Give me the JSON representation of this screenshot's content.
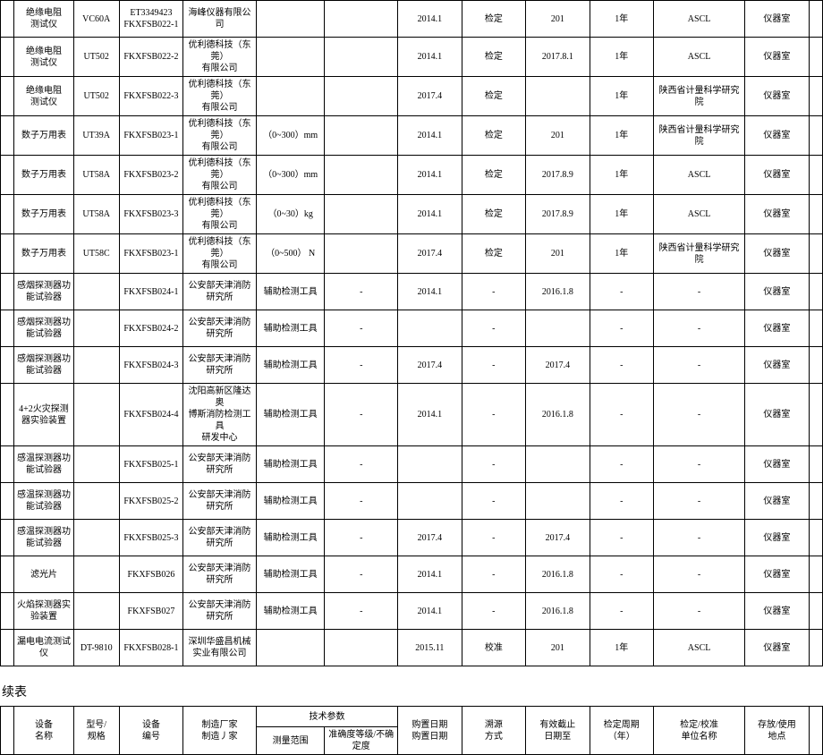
{
  "continuation_label": "续表",
  "header": {
    "col0": "",
    "col1_l1": "设备",
    "col1_l2": "名称",
    "col2_l1": "型号/",
    "col2_l2": "规格",
    "col3_l1": "设备",
    "col3_l2": "编号",
    "col4_l1": "制造厂家",
    "col4_l2": "制造丿家",
    "tech_params": "技术参数",
    "tech_sub1": "测量范围",
    "tech_sub2": "准确度等级/不确定度",
    "col7_l1": "购置日期",
    "col7_l2": "购置日期",
    "col8_l1": "溯源",
    "col8_l2": "方式",
    "col9_l1": "有效截止",
    "col9_l2": "日期至",
    "col10_l1": "检定周期",
    "col10_l2": "（年）",
    "col11_l1": "检定/校准",
    "col11_l2": "单位名称",
    "col12_l1": "存放/使用",
    "col12_l2": "地点",
    "col13": ""
  },
  "rows": [
    {
      "c0": "",
      "c1": "绝缘电阻<br>测试仪",
      "c2": "VC60A",
      "c3": "ET3349423<br>FKXFSB022-1",
      "c4": "海峰仪器有限公司",
      "c5": "",
      "c6": "",
      "c7": "2014.1",
      "c8": "检定",
      "c9": "201",
      "c10": "1年",
      "c11": "ASCL",
      "c12": "仪器室",
      "c13": ""
    },
    {
      "c0": "",
      "c1": "绝缘电阻<br>测试仪",
      "c2": "UT502",
      "c3": "FKXFSB022-2",
      "c4": "优利德科技（东莞）<br>有限公司",
      "c5": "",
      "c6": "",
      "c7": "2014.1",
      "c8": "检定",
      "c9": "2017.8.1",
      "c10": "1年",
      "c11": "ASCL",
      "c12": "仪器室",
      "c13": ""
    },
    {
      "c0": "",
      "c1": "绝缘电阻<br>测试仪",
      "c2": "UT502",
      "c3": "FKXFSB022-3",
      "c4": "优利德科技（东莞）<br>有限公司",
      "c5": "",
      "c6": "",
      "c7": "2017.4",
      "c8": "检定",
      "c9": "",
      "c10": "1年",
      "c11": "陕西省计量科学研究院",
      "c12": "仪器室",
      "c13": ""
    },
    {
      "c0": "",
      "c1": "数子万用表",
      "c2": "UT39A",
      "c3": "FKXFSB023-1",
      "c4": "优利德科技（东莞）<br>有限公司",
      "c5": "（0~300）mm",
      "c6": "",
      "c7": "2014.1",
      "c8": "检定",
      "c9": "201",
      "c10": "1年",
      "c11": "陕西省计量科学研究院",
      "c12": "仪器室",
      "c13": ""
    },
    {
      "c0": "",
      "c1": "数子万用表",
      "c2": "UT58A",
      "c3": "FKXFSB023-2",
      "c4": "优利德科技（东莞）<br>有限公司",
      "c5": "（0~300）mm",
      "c6": "",
      "c7": "2014.1",
      "c8": "检定",
      "c9": "2017.8.9",
      "c10": "1年",
      "c11": "ASCL",
      "c12": "仪器室",
      "c13": ""
    },
    {
      "c0": "",
      "c1": "数子万用表",
      "c2": "UT58A",
      "c3": "FKXFSB023-3",
      "c4": "优利德科技（东莞）<br>有限公司",
      "c5": "（0~30）kg",
      "c6": "",
      "c7": "2014.1",
      "c8": "检定",
      "c9": "2017.8.9",
      "c10": "1年",
      "c11": "ASCL",
      "c12": "仪器室",
      "c13": ""
    },
    {
      "c0": "",
      "c1": "数子万用表",
      "c2": "UT58C",
      "c3": "FKXFSB023-1",
      "c4": "优利德科技（东莞）<br>有限公司",
      "c5": "（0~500） N",
      "c6": "",
      "c7": "2017.4",
      "c8": "检定",
      "c9": "201",
      "c10": "1年",
      "c11": "陕西省计量科学研究院",
      "c12": "仪器室",
      "c13": ""
    },
    {
      "c0": "",
      "c1": "感烟探测器功<br>能试验器",
      "c2": "",
      "c3": "FKXFSB024-1",
      "c4": "公安部天津消防<br>研究所",
      "c5": "辅助检测工具",
      "c6": "-",
      "c7": "2014.1",
      "c8": "-",
      "c9": "2016.1.8",
      "c10": "-",
      "c11": "-",
      "c12": "仪器室",
      "c13": ""
    },
    {
      "c0": "",
      "c1": "感烟探测器功<br>能试验器",
      "c2": "",
      "c3": "FKXFSB024-2",
      "c4": "公安部天津消防<br>研究所",
      "c5": "辅助检测工具",
      "c6": "-",
      "c7": "",
      "c8": "-",
      "c9": "",
      "c10": "-",
      "c11": "-",
      "c12": "仪器室",
      "c13": ""
    },
    {
      "c0": "",
      "c1": "感烟探测器功<br>能试验器",
      "c2": "",
      "c3": "FKXFSB024-3",
      "c4": "公安部天津消防<br>研究所",
      "c5": "辅助检测工具",
      "c6": "-",
      "c7": "2017.4",
      "c8": "-",
      "c9": "2017.4",
      "c10": "-",
      "c11": "-",
      "c12": "仪器室",
      "c13": ""
    },
    {
      "c0": "",
      "c1": "4+2火灾探测<br>器实验装置",
      "c2": "",
      "c3": "FKXFSB024-4",
      "c4": "沈阳高新区隆达奥<br>博斯消防检测工具<br>研发中心",
      "c5": "辅助检测工具",
      "c6": "-",
      "c7": "2014.1",
      "c8": "-",
      "c9": "2016.1.8",
      "c10": "-",
      "c11": "-",
      "c12": "仪器室",
      "c13": ""
    },
    {
      "c0": "",
      "c1": "感温探测器功<br>能试验器",
      "c2": "",
      "c3": "FKXFSB025-1",
      "c4": "公安部天津消防<br>研究所",
      "c5": "辅助检测工具",
      "c6": "-",
      "c7": "",
      "c8": "-",
      "c9": "",
      "c10": "-",
      "c11": "-",
      "c12": "仪器室",
      "c13": ""
    },
    {
      "c0": "",
      "c1": "感温探测器功<br>能试验器",
      "c2": "",
      "c3": "FKXFSB025-2",
      "c4": "公安部天津消防<br>研究所",
      "c5": "辅助检测工具",
      "c6": "-",
      "c7": "",
      "c8": "-",
      "c9": "",
      "c10": "-",
      "c11": "-",
      "c12": "仪器室",
      "c13": ""
    },
    {
      "c0": "",
      "c1": "感温探测器功<br>能试验器",
      "c2": "",
      "c3": "FKXFSB025-3",
      "c4": "公安部天津消防<br>研究所",
      "c5": "辅助检测工具",
      "c6": "-",
      "c7": "2017.4",
      "c8": "-",
      "c9": "2017.4",
      "c10": "-",
      "c11": "-",
      "c12": "仪器室",
      "c13": ""
    },
    {
      "c0": "",
      "c1": "滤光片",
      "c2": "",
      "c3": "FKXFSB026",
      "c4": "公安部天津消防<br>研究所",
      "c5": "辅助检测工具",
      "c6": "-",
      "c7": "2014.1",
      "c8": "-",
      "c9": "2016.1.8",
      "c10": "-",
      "c11": "-",
      "c12": "仪器室",
      "c13": ""
    },
    {
      "c0": "",
      "c1": "火焰探测器实<br>验装置",
      "c2": "",
      "c3": "FKXFSB027",
      "c4": "公安部天津消防<br>研究所",
      "c5": "辅助检测工具",
      "c6": "-",
      "c7": "2014.1",
      "c8": "-",
      "c9": "2016.1.8",
      "c10": "-",
      "c11": "-",
      "c12": "仪器室",
      "c13": ""
    },
    {
      "c0": "",
      "c1": "漏电电流测试 仪",
      "c2": "DT-9810",
      "c3": "FKXFSB028-1",
      "c4": "深圳华盛昌机械<br>实业有限公司",
      "c5": "",
      "c6": "",
      "c7": "2015.11",
      "c8": "校准",
      "c9": "201",
      "c10": "1年",
      "c11": "ASCL",
      "c12": "仪器室",
      "c13": ""
    }
  ]
}
